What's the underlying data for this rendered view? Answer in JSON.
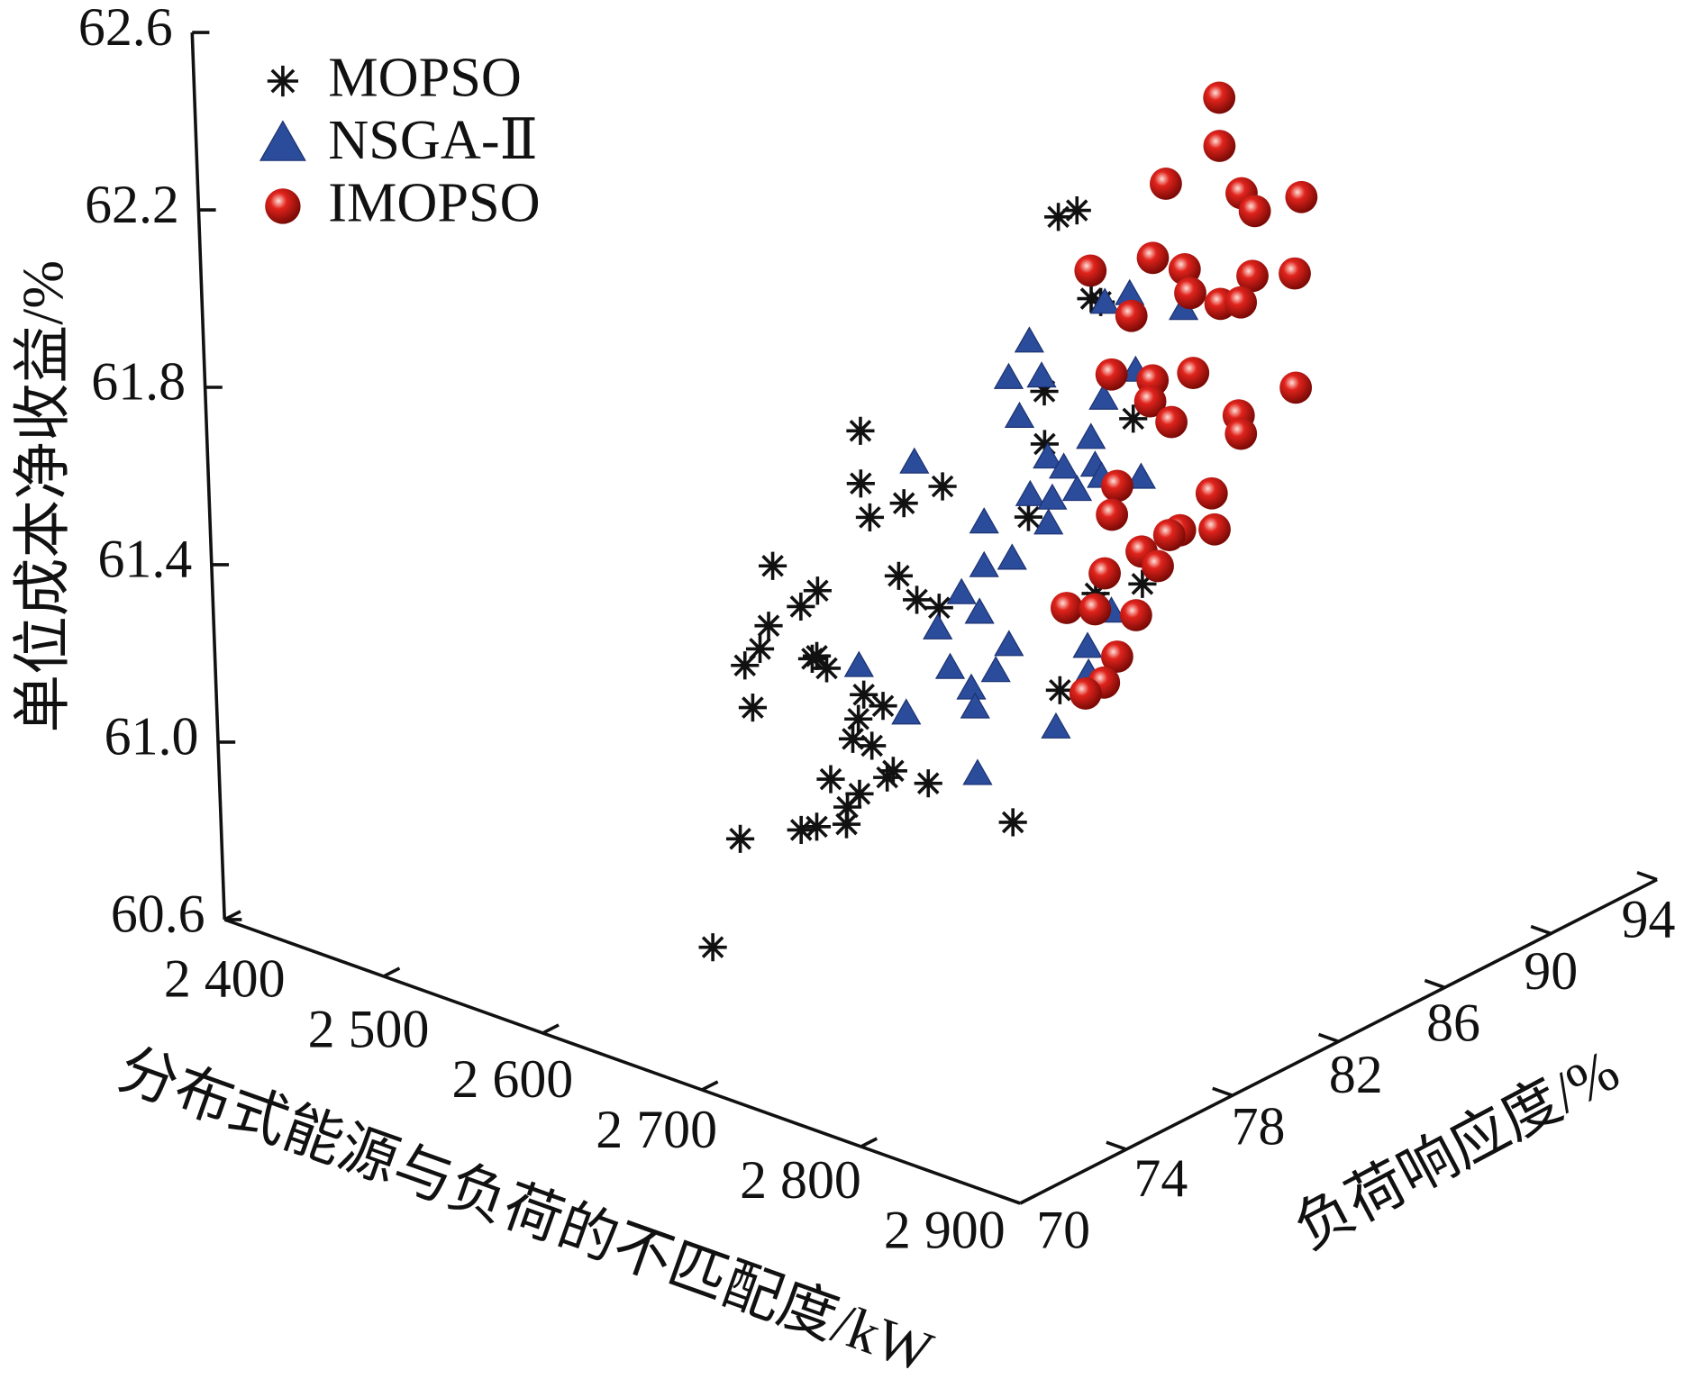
{
  "chart_data": {
    "type": "scatter3d",
    "xlabel": "分布式能源与负荷的不匹配度/kW",
    "ylabel": "负荷响应度/%",
    "zlabel": "单位成本净收益/%",
    "xlim": [
      2400,
      2900
    ],
    "xticks": [
      {
        "value": 2400,
        "label": "2 400"
      },
      {
        "value": 2500,
        "label": "2 500"
      },
      {
        "value": 2600,
        "label": "2 600"
      },
      {
        "value": 2700,
        "label": "2 700"
      },
      {
        "value": 2800,
        "label": "2 800"
      },
      {
        "value": 2900,
        "label": "2 900"
      }
    ],
    "ylim": [
      70,
      94
    ],
    "yticks": [
      70,
      74,
      78,
      82,
      86,
      90,
      94
    ],
    "zlim": [
      60.6,
      62.6
    ],
    "zticks": [
      60.6,
      {
        "value": 61,
        "label": "61.0"
      },
      61.4,
      61.8,
      62.2,
      62.6
    ],
    "legend": "upper left",
    "series": [
      {
        "name": "MOPSO",
        "color": "#111111",
        "marker": "asterisk",
        "x": [
          2856,
          2844,
          2863,
          2869,
          2831,
          2887,
          2830,
          2713,
          2712,
          2764,
          2739,
          2717,
          2818,
          2654,
          2734,
          2682,
          2671,
          2745,
          2759,
          2650,
          2644,
          2634,
          2680,
          2677,
          2686,
          2709,
          2638,
          2721,
          2705,
          2701,
          2713,
          2834,
          2859,
          2889,
          2859,
          2686,
          2726,
          2722,
          2748,
          2704,
          2696,
          2695,
          2666,
          2676,
          2801,
          2627,
          2607
        ],
        "y": [
          76,
          76,
          76,
          76,
          76,
          76,
          76,
          76,
          76,
          76,
          76,
          76,
          76,
          76,
          76,
          76,
          76,
          76,
          76,
          76,
          76,
          76,
          76,
          76,
          76,
          76,
          76,
          76,
          76,
          76,
          76,
          76,
          76,
          76,
          76,
          76,
          76,
          76,
          76,
          76,
          76,
          76,
          76,
          76,
          76,
          76,
          76
        ],
        "z": [
          62.6,
          62.57,
          62.41,
          62.41,
          62.16,
          62.17,
          62.04,
          61.92,
          61.8,
          61.86,
          61.79,
          61.73,
          61.86,
          61.54,
          61.62,
          61.52,
          61.47,
          61.58,
          61.58,
          61.4,
          61.34,
          61.29,
          61.37,
          61.36,
          61.35,
          61.32,
          61.2,
          61.31,
          61.26,
          61.21,
          61.21,
          61.49,
          61.74,
          61.8,
          61.72,
          61.1,
          61.17,
          61.15,
          61.17,
          61.09,
          61.05,
          61.01,
          60.96,
          60.98,
          61.15,
          60.89,
          60.62
        ]
      },
      {
        "name": "NSGA-Ⅱ",
        "color": "#2b4b9b",
        "marker": "triangle",
        "x": [
          2740,
          2805,
          2789,
          2839,
          2726,
          2747,
          2732,
          2807,
          2786,
          2777,
          2664,
          2749,
          2759,
          2779,
          2783,
          2767,
          2808,
          2737,
          2751,
          2748,
          2707,
          2724,
          2706,
          2691,
          2786,
          2675,
          2702,
          2720,
          2624,
          2682,
          2770,
          2711,
          2695,
          2697,
          2770,
          2653,
          2748,
          2697
        ],
        "y": [
          80.8,
          80.8,
          80.8,
          80.8,
          80.8,
          80.8,
          80.8,
          80.8,
          80.8,
          80.8,
          80.8,
          80.8,
          80.8,
          80.8,
          80.8,
          80.8,
          80.8,
          80.8,
          80.8,
          80.8,
          80.8,
          80.8,
          80.8,
          80.8,
          80.8,
          80.8,
          80.8,
          80.8,
          80.8,
          80.8,
          80.8,
          80.8,
          80.8,
          80.8,
          80.8,
          80.8,
          80.8,
          80.8
        ],
        "z": [
          62.01,
          62.2,
          62.16,
          62.21,
          61.91,
          61.94,
          61.83,
          62.03,
          61.94,
          61.84,
          61.64,
          61.76,
          61.75,
          61.78,
          61.76,
          61.71,
          61.79,
          61.66,
          61.67,
          61.61,
          61.56,
          61.5,
          61.46,
          61.38,
          61.46,
          61.28,
          61.35,
          61.3,
          61.13,
          61.2,
          61.36,
          61.23,
          61.17,
          61.13,
          61.3,
          61.06,
          61.15,
          60.98
        ]
      },
      {
        "name": "IMOPSO",
        "color": "#e0231c",
        "marker": "sphere",
        "x": [
          2784,
          2783,
          2748,
          2796,
          2804,
          2834,
          2738,
          2698,
          2758,
          2801,
          2828,
          2761,
          2780,
          2793,
          2723,
          2709,
          2735,
          2761,
          2733,
          2826,
          2746,
          2789,
          2790,
          2710,
          2770,
          2706,
          2749,
          2742,
          2771,
          2724,
          2734,
          2700,
          2675,
          2719,
          2693,
          2706,
          2697,
          2685
        ],
        "y": [
          85.6,
          85.6,
          85.6,
          85.6,
          85.6,
          85.6,
          85.6,
          85.6,
          85.6,
          85.6,
          85.6,
          85.6,
          85.6,
          85.6,
          85.6,
          85.6,
          85.6,
          85.6,
          85.6,
          85.6,
          85.6,
          85.6,
          85.6,
          85.6,
          85.6,
          85.6,
          85.6,
          85.6,
          85.6,
          85.6,
          85.6,
          85.6,
          85.6,
          85.6,
          85.6,
          85.6,
          85.6,
          85.6
        ],
        "z": [
          62.47,
          62.36,
          62.23,
          62.27,
          62.24,
          62.31,
          62.05,
          61.97,
          62.05,
          62.09,
          62.13,
          62,
          62,
          62.02,
          61.9,
          61.75,
          61.77,
          61.82,
          61.72,
          61.87,
          61.69,
          61.76,
          61.72,
          61.5,
          61.56,
          61.43,
          61.45,
          61.43,
          61.48,
          61.37,
          61.35,
          61.29,
          61.18,
          61.22,
          61.2,
          61.11,
          61.04,
          61
        ]
      }
    ]
  }
}
